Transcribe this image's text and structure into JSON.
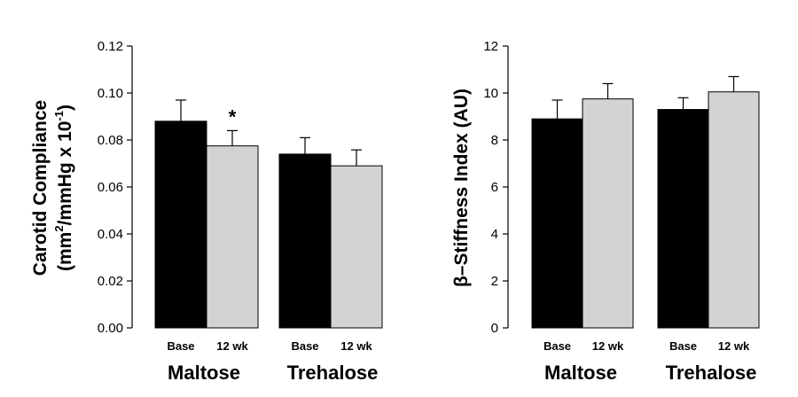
{
  "chart_data": [
    {
      "type": "bar",
      "ylabel_line1": "Carotid Compliance",
      "ylabel_line2_prefix": "(mm",
      "ylabel_line2_sup1": "2",
      "ylabel_line2_mid": "/mmHg x 10",
      "ylabel_line2_sup2": "-1",
      "ylabel_line2_suffix": ")",
      "ylim": [
        0,
        0.12
      ],
      "yticks": [
        "0.00",
        "0.02",
        "0.04",
        "0.06",
        "0.08",
        "0.10",
        "0.12"
      ],
      "ytick_values": [
        0,
        0.02,
        0.04,
        0.06,
        0.08,
        0.1,
        0.12
      ],
      "groups": [
        "Maltose",
        "Trehalose"
      ],
      "categories": [
        "Base",
        "12 wk"
      ],
      "series": [
        {
          "name": "Base",
          "color": "#000000",
          "values": [
            0.088,
            0.074
          ],
          "errors": [
            0.009,
            0.007
          ]
        },
        {
          "name": "12 wk",
          "color": "#d3d3d3",
          "values": [
            0.0775,
            0.069
          ],
          "errors": [
            0.0065,
            0.0068
          ]
        }
      ],
      "annotations": [
        {
          "text": "*",
          "group": 0,
          "series": 1
        }
      ]
    },
    {
      "type": "bar",
      "ylabel": "β–Stiffness Index (AU)",
      "ylim": [
        0,
        12
      ],
      "yticks": [
        "0",
        "2",
        "4",
        "6",
        "8",
        "10",
        "12"
      ],
      "ytick_values": [
        0,
        2,
        4,
        6,
        8,
        10,
        12
      ],
      "groups": [
        "Maltose",
        "Trehalose"
      ],
      "categories": [
        "Base",
        "12 wk"
      ],
      "series": [
        {
          "name": "Base",
          "color": "#000000",
          "values": [
            8.9,
            9.3
          ],
          "errors": [
            0.8,
            0.5
          ]
        },
        {
          "name": "12 wk",
          "color": "#d3d3d3",
          "values": [
            9.75,
            10.05
          ],
          "errors": [
            0.65,
            0.65
          ]
        }
      ],
      "annotations": []
    }
  ]
}
